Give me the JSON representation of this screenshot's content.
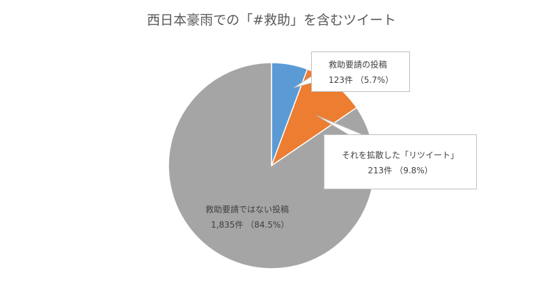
{
  "chart_data": {
    "type": "pie",
    "title": "西日本豪雨での「#救助」を含むツイート",
    "slices": [
      {
        "label": "救助要請の投稿",
        "value": 123,
        "value_label": "123件 （5.7%）",
        "percent": 5.7,
        "color": "#5b9bd5"
      },
      {
        "label": "それを拡散した「リツイート」",
        "value": 213,
        "value_label": "213件 （9.8%）",
        "percent": 9.8,
        "color": "#ed7d31"
      },
      {
        "label": "救助要請ではない投稿",
        "value": 1835,
        "value_label": "1,835件 （84.5%）",
        "percent": 84.5,
        "color": "#a5a5a5"
      }
    ],
    "legend": "none"
  }
}
